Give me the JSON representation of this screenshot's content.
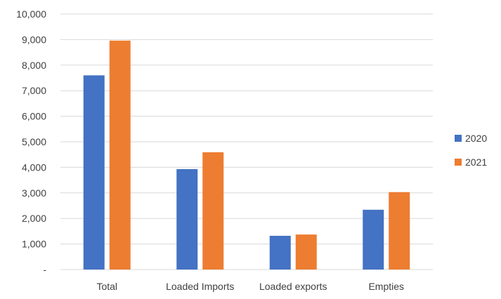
{
  "chart_data": {
    "type": "bar",
    "title": "",
    "xlabel": "",
    "ylabel": "",
    "categories": [
      "Total",
      "Loaded Imports",
      "Loaded exports",
      "Empties"
    ],
    "series": [
      {
        "name": "2020",
        "values": [
          7600,
          3930,
          1320,
          2340
        ],
        "color": "#4472C4"
      },
      {
        "name": "2021",
        "values": [
          8960,
          4590,
          1370,
          3030
        ],
        "color": "#ED7D31"
      }
    ],
    "ylim": [
      0,
      10000
    ],
    "ytick_step": 1000,
    "ytick_labels": [
      "-",
      "1,000",
      "2,000",
      "3,000",
      "4,000",
      "5,000",
      "6,000",
      "7,000",
      "8,000",
      "9,000",
      "10,000"
    ],
    "grid": true,
    "gridline_color": "#D9D9D9",
    "legend_position": "right"
  }
}
